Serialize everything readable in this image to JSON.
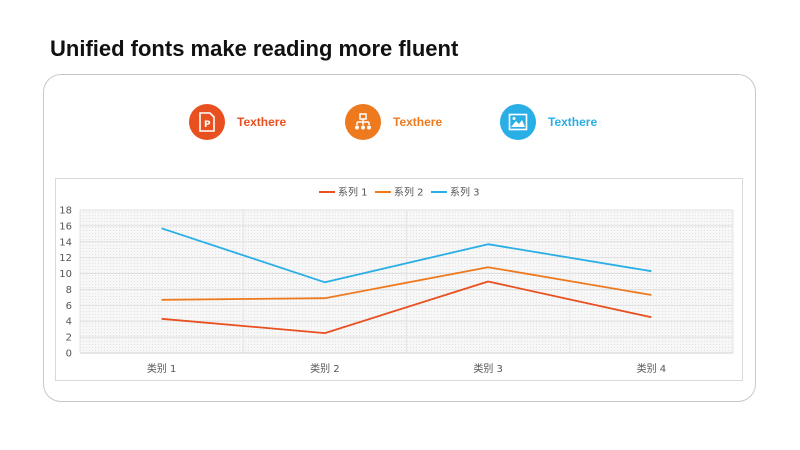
{
  "title": "Unified fonts make reading more fluent",
  "icons": [
    {
      "label": "Texthere",
      "color": "#e8501f",
      "icon": "powerpoint-file-icon"
    },
    {
      "label": "Texthere",
      "color": "#ee7a1f",
      "icon": "org-chart-icon"
    },
    {
      "label": "Texthere",
      "color": "#29aee6",
      "icon": "picture-icon"
    }
  ],
  "chart_data": {
    "type": "line",
    "categories": [
      "类别 1",
      "类别 2",
      "类别 3",
      "类别 4"
    ],
    "series": [
      {
        "name": "系列 1",
        "color": "#e8501f",
        "values": [
          4.3,
          2.5,
          9.0,
          4.5
        ]
      },
      {
        "name": "系列 2",
        "color": "#ee7a1f",
        "values": [
          6.7,
          6.9,
          10.8,
          7.3
        ]
      },
      {
        "name": "系列 3",
        "color": "#29aee6",
        "values": [
          15.7,
          8.9,
          13.7,
          10.3
        ]
      }
    ],
    "ylim": [
      0,
      18
    ],
    "yticks": [
      0,
      2,
      4,
      6,
      8,
      10,
      12,
      14,
      16,
      18
    ],
    "grid": true,
    "legend_position": "top-center"
  }
}
